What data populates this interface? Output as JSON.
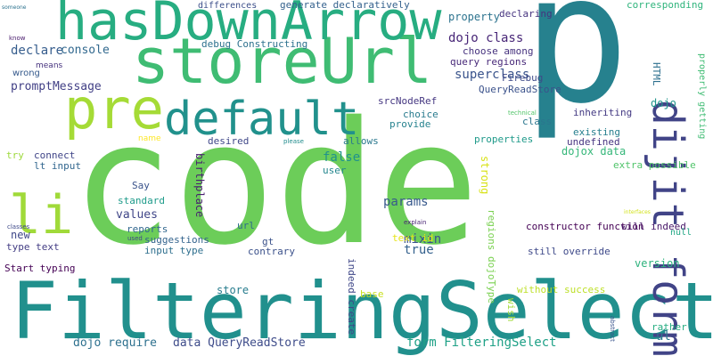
{
  "wordcloud": {
    "words": [
      {
        "text": "code",
        "color": "#6ccd59"
      },
      {
        "text": "p",
        "color": "#26818e"
      },
      {
        "text": "FilteringSelect",
        "color": "#21908d"
      },
      {
        "text": "storeUrl",
        "color": "#3fbc73"
      },
      {
        "text": "hasDownArrow",
        "color": "#27ad81"
      },
      {
        "text": "pre",
        "color": "#a5db36"
      },
      {
        "text": "default",
        "color": "#21918c"
      },
      {
        "text": "dijit form",
        "color": "#414487"
      },
      {
        "text": "li",
        "color": "#a0da39"
      },
      {
        "text": "dojo class",
        "color": "#482677"
      },
      {
        "text": "declare",
        "color": "#365d8d"
      },
      {
        "text": "console",
        "color": "#31688e"
      },
      {
        "text": "superclass",
        "color": "#3a548c"
      },
      {
        "text": "promptMessage",
        "color": "#424086"
      },
      {
        "text": "property",
        "color": "#2c738e"
      },
      {
        "text": "form FilteringSelect",
        "color": "#1fa187"
      },
      {
        "text": "dojo require",
        "color": "#2d708e"
      },
      {
        "text": "data QueryReadStore",
        "color": "#3e4c8a"
      },
      {
        "text": "params",
        "color": "#38598c"
      },
      {
        "text": "values",
        "color": "#404688"
      },
      {
        "text": "mixin",
        "color": "#3b528b"
      },
      {
        "text": "false",
        "color": "#20928c"
      },
      {
        "text": "true",
        "color": "#34618d"
      },
      {
        "text": "new",
        "color": "#3f4889"
      },
      {
        "text": "store",
        "color": "#287d8e"
      },
      {
        "text": "dojox data",
        "color": "#35b779"
      },
      {
        "text": "birthplace",
        "color": "#481f70"
      },
      {
        "text": "strong",
        "color": "#d8e219"
      },
      {
        "text": "version",
        "color": "#2db27d"
      },
      {
        "text": "ul",
        "color": "#2a788e"
      },
      {
        "text": "constructor function",
        "color": "#440154"
      },
      {
        "text": "Firebug",
        "color": "#3e4a89"
      },
      {
        "text": "QueryReadStore",
        "color": "#3b528b"
      },
      {
        "text": "query regions",
        "color": "#482979"
      },
      {
        "text": "choose among",
        "color": "#46327e"
      },
      {
        "text": "srcNodeRef",
        "color": "#453781"
      },
      {
        "text": "choice",
        "color": "#297b8e"
      },
      {
        "text": "provide",
        "color": "#26828e"
      },
      {
        "text": "class",
        "color": "#2a768e"
      },
      {
        "text": "inheriting",
        "color": "#443a83"
      },
      {
        "text": "existing",
        "color": "#277f8e"
      },
      {
        "text": "undefined",
        "color": "#463480"
      },
      {
        "text": "properties",
        "color": "#1f9a8a"
      },
      {
        "text": "desired",
        "color": "#3f4788"
      },
      {
        "text": "allows",
        "color": "#2a788e"
      },
      {
        "text": "user",
        "color": "#24868e"
      },
      {
        "text": "connect",
        "color": "#404588"
      },
      {
        "text": "lt input",
        "color": "#31668e"
      },
      {
        "text": "try",
        "color": "#9dd93b"
      },
      {
        "text": "Say",
        "color": "#3a538b"
      },
      {
        "text": "standard",
        "color": "#1e9b8a"
      },
      {
        "text": "reports",
        "color": "#31678e"
      },
      {
        "text": "suggestions",
        "color": "#33638d"
      },
      {
        "text": "input type",
        "color": "#2e6f8e"
      },
      {
        "text": "type text",
        "color": "#433d84"
      },
      {
        "text": "Start typing",
        "color": "#440154"
      },
      {
        "text": "url",
        "color": "#2f6c8e"
      },
      {
        "text": "gt",
        "color": "#3b528b"
      },
      {
        "text": "contrary",
        "color": "#3b518b"
      },
      {
        "text": "will indeed",
        "color": "#481769"
      },
      {
        "text": "extra possible",
        "color": "#50c46a"
      },
      {
        "text": "text id",
        "color": "#e7e419"
      },
      {
        "text": "regions dojoType",
        "color": "#7ad151"
      },
      {
        "text": "still override",
        "color": "#3e4989"
      },
      {
        "text": "without success",
        "color": "#bddf26"
      },
      {
        "text": "rather",
        "color": "#26ad81"
      },
      {
        "text": "wish",
        "color": "#a2da37"
      },
      {
        "text": "base",
        "color": "#c8e020"
      },
      {
        "text": "indeed create",
        "color": "#3f4788"
      },
      {
        "text": "generate declaratively",
        "color": "#34618d"
      },
      {
        "text": "differences",
        "color": "#3c4f8a"
      },
      {
        "text": "declaring",
        "color": "#46337f"
      },
      {
        "text": "corresponding",
        "color": "#2fb47c"
      },
      {
        "text": "debug Constructing",
        "color": "#2d718e"
      },
      {
        "text": "dojo",
        "color": "#1f958b"
      },
      {
        "text": "HTML",
        "color": "#2d708e"
      },
      {
        "text": "properly getting",
        "color": "#3fbc73"
      },
      {
        "text": "null",
        "color": "#22a785"
      },
      {
        "text": "name",
        "color": "#fde725"
      },
      {
        "text": "please",
        "color": "#228c8d"
      },
      {
        "text": "technical",
        "color": "#52c569"
      },
      {
        "text": "explain",
        "color": "#482475"
      },
      {
        "text": "interfaces",
        "color": "#d2e21b"
      },
      {
        "text": "abstract",
        "color": "#3a548c"
      },
      {
        "text": "classes",
        "color": "#3e4989"
      },
      {
        "text": "used",
        "color": "#404588"
      },
      {
        "text": "know",
        "color": "#481a6c"
      },
      {
        "text": "means",
        "color": "#46327e"
      },
      {
        "text": "wrong",
        "color": "#375b8d"
      },
      {
        "text": "someone",
        "color": "#2c728e"
      }
    ]
  }
}
